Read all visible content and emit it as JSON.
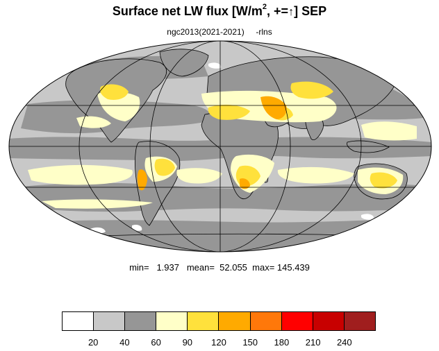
{
  "title": {
    "main": "Surface net LW flux [W/m",
    "superscript": "2",
    "after_sup": ", +=",
    "arrow": "↑",
    "suffix": "]  SEP"
  },
  "subtitle": {
    "run": "ngc2013(2021-2021)",
    "variable": "-rlns"
  },
  "stats": {
    "text": "min=   1.937   mean=  52.055  max= 145.439"
  },
  "projection": "Mollweide",
  "colorbar": {
    "colors": [
      "#ffffff",
      "#c8c8c8",
      "#969696",
      "#ffffc8",
      "#ffe13c",
      "#ffaa00",
      "#ff780a",
      "#ff0000",
      "#c80000",
      "#a01e1e"
    ],
    "ticks": [
      "20",
      "40",
      "60",
      "90",
      "120",
      "150",
      "180",
      "210",
      "240"
    ]
  },
  "colors": {
    "ocean_base": "#c8c8c8",
    "mid_gray": "#969696",
    "light_yellow": "#ffffc8",
    "yellow": "#ffe13c",
    "orange": "#ffaa00",
    "dark_orange": "#ff780a"
  }
}
